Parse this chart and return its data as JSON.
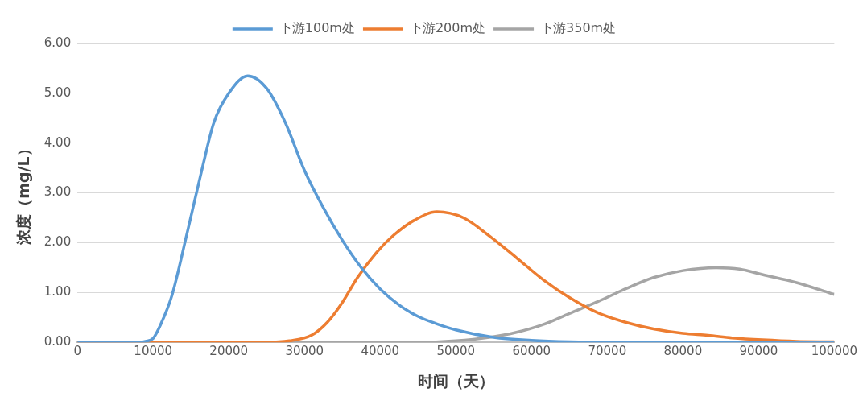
{
  "chart_data": {
    "type": "line",
    "xlabel": "时间（天）",
    "ylabel": "浓度（mg/L）",
    "xlim": [
      0,
      100000
    ],
    "xticks": [
      0,
      10000,
      20000,
      30000,
      40000,
      50000,
      60000,
      70000,
      80000,
      90000,
      100000
    ],
    "ylim": [
      0,
      6
    ],
    "yticks": [
      {
        "value": 0,
        "label": "0.00"
      },
      {
        "value": 1,
        "label": "1.00"
      },
      {
        "value": 2,
        "label": "2.00"
      },
      {
        "value": 3,
        "label": "3.00"
      },
      {
        "value": 4,
        "label": "4.00"
      },
      {
        "value": 5,
        "label": "5.00"
      },
      {
        "value": 6,
        "label": "6.00"
      }
    ],
    "grid": "y",
    "legend": "top",
    "marker": "none",
    "line_style": "solid",
    "series": [
      {
        "name": "下游100m处",
        "color": "#5b9bd5",
        "x": [
          0,
          8000,
          9000,
          10000,
          11000,
          12500,
          14500,
          16500,
          18000,
          20000,
          22500,
          25000,
          27500,
          30000,
          32500,
          35000,
          37500,
          40000,
          42500,
          45000,
          47500,
          50000,
          55000,
          60000,
          65000,
          70000,
          80000,
          90000,
          100000
        ],
        "values": [
          0,
          0,
          0.02,
          0.08,
          0.36,
          0.95,
          2.2,
          3.5,
          4.4,
          5.0,
          5.35,
          5.1,
          4.4,
          3.45,
          2.7,
          2.05,
          1.5,
          1.07,
          0.75,
          0.52,
          0.37,
          0.25,
          0.1,
          0.04,
          0.01,
          0,
          0,
          0,
          0
        ]
      },
      {
        "name": "下游200m处",
        "color": "#ed7d31",
        "x": [
          0,
          25000,
          28000,
          31000,
          33000,
          35000,
          37000,
          39500,
          41700,
          44500,
          47500,
          51000,
          54400,
          58000,
          61600,
          65000,
          68800,
          72500,
          76100,
          80000,
          83300,
          86500,
          90500,
          95000,
          100000
        ],
        "values": [
          0,
          0,
          0.03,
          0.15,
          0.4,
          0.8,
          1.3,
          1.8,
          2.14,
          2.45,
          2.62,
          2.5,
          2.14,
          1.7,
          1.25,
          0.9,
          0.59,
          0.4,
          0.27,
          0.18,
          0.14,
          0.09,
          0.05,
          0.02,
          0.01
        ]
      },
      {
        "name": "下游350m处",
        "color": "#a5a5a5",
        "x": [
          0,
          45000,
          50000,
          54400,
          58000,
          61600,
          65000,
          68800,
          72500,
          76100,
          80000,
          84400,
          87500,
          90500,
          95000,
          100000
        ],
        "values": [
          0,
          0,
          0.03,
          0.1,
          0.2,
          0.36,
          0.58,
          0.82,
          1.08,
          1.3,
          1.44,
          1.5,
          1.47,
          1.36,
          1.2,
          0.96
        ]
      }
    ]
  }
}
